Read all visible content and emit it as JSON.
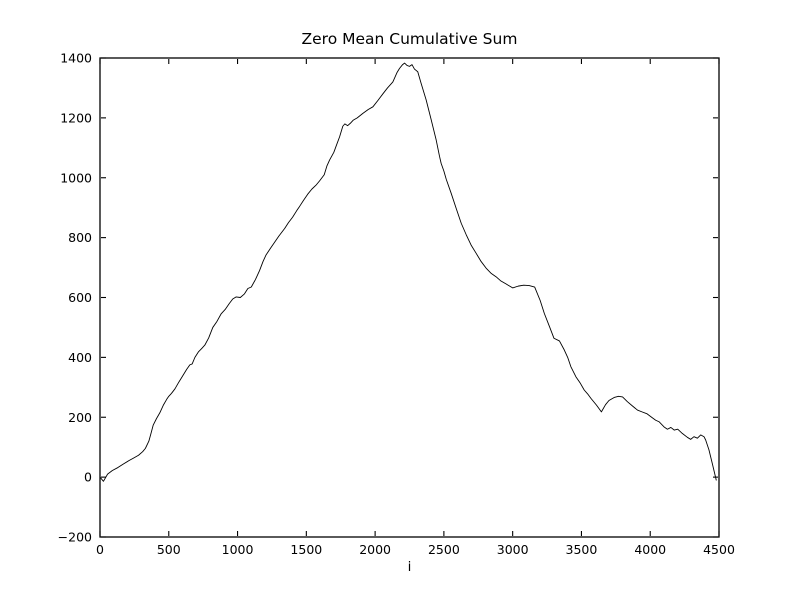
{
  "chart_data": {
    "type": "line",
    "title": "Zero Mean Cumulative Sum",
    "xlabel": "i",
    "ylabel": "",
    "legend": null,
    "grid": false,
    "background": "#ffffff",
    "line_color": "#000000",
    "frame_color": "#000000",
    "xlim": [
      0,
      4500
    ],
    "ylim": [
      -200,
      1400
    ],
    "xticks": [
      0,
      500,
      1000,
      1500,
      2000,
      2500,
      3000,
      3500,
      4000,
      4500
    ],
    "xtick_labels": [
      "0",
      "500",
      "1000",
      "1500",
      "2000",
      "2500",
      "3000",
      "3500",
      "4000",
      "4500"
    ],
    "yticks": [
      -200,
      0,
      200,
      400,
      600,
      800,
      1000,
      1200,
      1400
    ],
    "ytick_labels": [
      "−200",
      "0",
      "200",
      "400",
      "600",
      "800",
      "1000",
      "1200",
      "1400"
    ],
    "x": [
      0,
      25,
      55,
      90,
      130,
      170,
      210,
      245,
      280,
      310,
      330,
      355,
      370,
      387,
      410,
      435,
      460,
      485,
      500,
      520,
      545,
      570,
      590,
      610,
      630,
      653,
      670,
      690,
      715,
      740,
      762,
      790,
      820,
      850,
      880,
      910,
      940,
      965,
      990,
      1020,
      1050,
      1075,
      1100,
      1130,
      1160,
      1185,
      1207,
      1240,
      1270,
      1300,
      1343,
      1370,
      1400,
      1430,
      1452,
      1480,
      1510,
      1540,
      1570,
      1597,
      1630,
      1650,
      1669,
      1700,
      1720,
      1742,
      1765,
      1780,
      1800,
      1820,
      1840,
      1870,
      1911,
      1950,
      1984,
      2020,
      2056,
      2090,
      2129,
      2160,
      2177,
      2200,
      2214,
      2232,
      2250,
      2268,
      2286,
      2310,
      2334,
      2371,
      2407,
      2444,
      2468,
      2480,
      2500,
      2517,
      2553,
      2589,
      2626,
      2662,
      2698,
      2734,
      2771,
      2807,
      2845,
      2880,
      2915,
      2953,
      3000,
      3040,
      3080,
      3120,
      3160,
      3200,
      3230,
      3270,
      3300,
      3340,
      3375,
      3400,
      3423,
      3460,
      3490,
      3520,
      3545,
      3569,
      3610,
      3645,
      3675,
      3700,
      3738,
      3770,
      3799,
      3834,
      3870,
      3907,
      3940,
      3975,
      4010,
      4040,
      4064,
      4100,
      4125,
      4150,
      4175,
      4200,
      4233,
      4270,
      4294,
      4318,
      4343,
      4367,
      4391,
      4403,
      4427,
      4451,
      4480
    ],
    "y": [
      0,
      -14,
      10,
      22,
      32,
      44,
      55,
      64,
      73,
      85,
      96,
      120,
      145,
      174,
      195,
      215,
      240,
      260,
      270,
      280,
      295,
      315,
      330,
      345,
      360,
      375,
      378,
      400,
      418,
      430,
      441,
      465,
      500,
      520,
      545,
      560,
      580,
      595,
      602,
      600,
      612,
      630,
      635,
      660,
      690,
      720,
      742,
      765,
      785,
      805,
      831,
      850,
      868,
      890,
      905,
      925,
      945,
      962,
      975,
      990,
      1010,
      1040,
      1059,
      1085,
      1110,
      1137,
      1172,
      1180,
      1174,
      1182,
      1192,
      1200,
      1215,
      1228,
      1237,
      1258,
      1280,
      1300,
      1320,
      1352,
      1365,
      1378,
      1383,
      1375,
      1372,
      1378,
      1363,
      1354,
      1316,
      1260,
      1195,
      1126,
      1072,
      1048,
      1022,
      995,
      948,
      898,
      848,
      810,
      775,
      748,
      720,
      698,
      680,
      669,
      655,
      645,
      632,
      638,
      641,
      640,
      635,
      590,
      547,
      500,
      464,
      455,
      425,
      400,
      369,
      335,
      315,
      291,
      278,
      263,
      240,
      218,
      242,
      256,
      266,
      270,
      268,
      252,
      238,
      224,
      218,
      212,
      200,
      190,
      185,
      168,
      160,
      166,
      157,
      160,
      146,
      133,
      126,
      135,
      130,
      141,
      135,
      124,
      91,
      46,
      -10
    ]
  }
}
